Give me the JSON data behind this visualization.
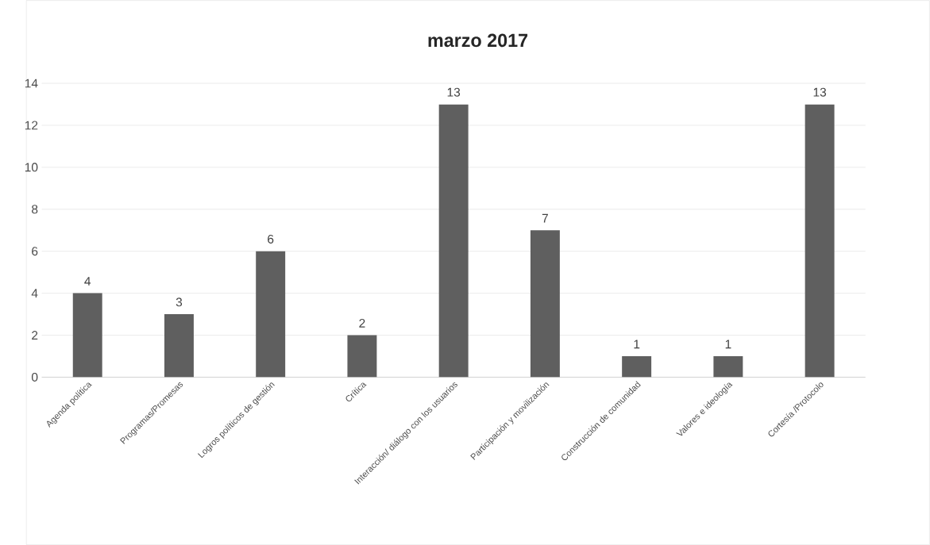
{
  "chart_data": {
    "type": "bar",
    "title": "marzo 2017",
    "categories": [
      "Agenda política",
      "Programas/Promesas",
      "Logros políticos de gestión",
      "Crítica",
      "Interacción/ diálogo con los usuarios",
      "Participación y movilización",
      "Construcción de comunidad",
      "Valores e ideología",
      "Cortesía /Protocolo"
    ],
    "values": [
      4,
      3,
      6,
      2,
      13,
      7,
      1,
      1,
      13
    ],
    "color": "#5f5f5f",
    "ylim": [
      0,
      14
    ],
    "yticks": [
      0,
      2,
      4,
      6,
      8,
      10,
      12,
      14
    ],
    "grid": "y",
    "data_labels": true
  }
}
